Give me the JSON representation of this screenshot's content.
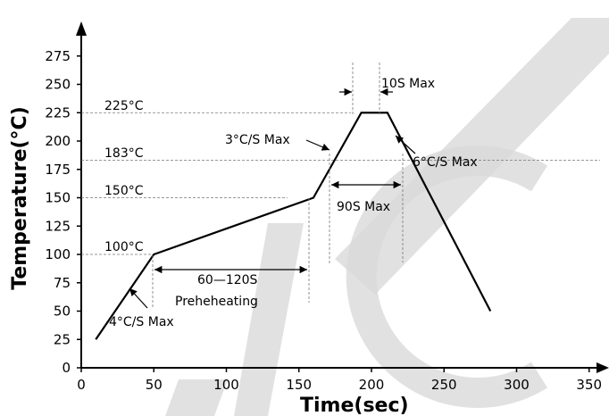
{
  "chart_data": {
    "type": "line",
    "title": "",
    "xlabel": "Time(sec)",
    "ylabel": "Temperature(°C)",
    "xlim": [
      0,
      360
    ],
    "ylim": [
      0,
      290
    ],
    "grid": false,
    "x_ticks": [
      0,
      50,
      100,
      150,
      200,
      250,
      300,
      350
    ],
    "y_ticks": [
      0,
      25,
      50,
      75,
      100,
      125,
      150,
      175,
      200,
      225,
      250,
      275
    ],
    "series": [
      {
        "name": "",
        "x": [
          10,
          50,
          160,
          193,
          211,
          282
        ],
        "y": [
          25,
          100,
          150,
          225,
          225,
          50
        ]
      }
    ],
    "reference_levels": [
      {
        "label": "225°C",
        "y": 225
      },
      {
        "label": "183°C",
        "y": 183
      },
      {
        "label": "150°C",
        "y": 150
      },
      {
        "label": "100°C",
        "y": 100
      }
    ],
    "annotations": {
      "ramp_up_rate": "4°C/S Max",
      "ramp_to_peak_rate": "3°C/S Max",
      "cooling_rate": "6°C/S Max",
      "preheat_time": "60—120S",
      "preheat_label": "Preheheating",
      "above_183_time": "90S Max",
      "peak_time": "10S Max"
    },
    "watermark_color": "#d9d9d9",
    "line_color": "#000000"
  }
}
